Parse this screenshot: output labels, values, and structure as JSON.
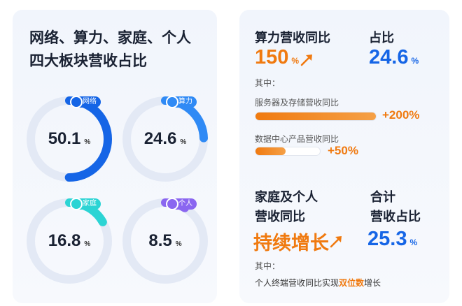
{
  "left": {
    "title_line1": "网络、算力、家庭、个人",
    "title_line2": "四大板块营收占比"
  },
  "chart_data": {
    "type": "pie",
    "categories": [
      "网络",
      "算力",
      "家庭",
      "个人"
    ],
    "values": [
      50.1,
      24.6,
      16.8,
      8.5
    ],
    "unit": "%",
    "colors": [
      "#1565e6",
      "#2f8af5",
      "#2bd4d4",
      "#8a66f0"
    ]
  },
  "right": {
    "compute": {
      "title": "算力营收同比",
      "growth_value": "150",
      "growth_unit": "%",
      "share_title": "占比",
      "share_value": "24.6",
      "share_unit": "%",
      "note": "其中：",
      "bars": [
        {
          "label": "服务器及存储营收同比",
          "value_text": "+200%",
          "value": 200
        },
        {
          "label": "数据中心产品营收同比",
          "value_text": "+50%",
          "value": 50
        }
      ]
    },
    "home": {
      "title_line1": "家庭及个人",
      "title_line2": "营收同比",
      "growth_text": "持续增长",
      "total_title_line1": "合计",
      "total_title_line2": "营收占比",
      "total_value": "25.3",
      "total_unit": "%",
      "note": "其中：",
      "footer_prefix": "个人终端营收同比实现",
      "footer_highlight": "双位数",
      "footer_suffix": "增长"
    }
  },
  "colors": {
    "orange": "#f07a10",
    "blue": "#1565e6",
    "track": "#e3e9f5"
  }
}
